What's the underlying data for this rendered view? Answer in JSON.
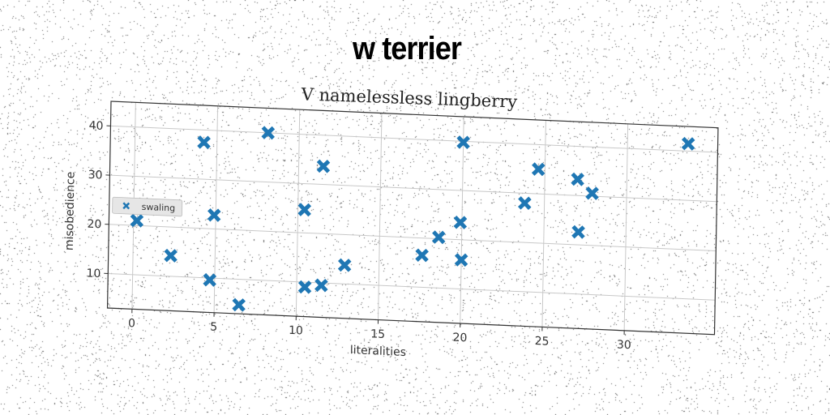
{
  "header": {
    "title": "w terrier"
  },
  "colors": {
    "series": "#1f77b4",
    "grid": "#c8c8c8",
    "axes": "#333333"
  },
  "chart_data": {
    "type": "scatter",
    "title": "V namelessless lingberry",
    "xlabel": "literalities",
    "ylabel": "misobedience",
    "xlim": [
      -1.5,
      35.5
    ],
    "ylim": [
      3,
      45
    ],
    "xticks": [
      0,
      5,
      10,
      15,
      20,
      25,
      30
    ],
    "yticks": [
      10,
      20,
      30,
      40
    ],
    "grid": true,
    "legend_position": "center-left",
    "marker": "x",
    "series": [
      {
        "name": "swaling",
        "points": [
          [
            0.2,
            21
          ],
          [
            2.3,
            14.2
          ],
          [
            4.2,
            37.5
          ],
          [
            4.7,
            9.6
          ],
          [
            4.9,
            22.8
          ],
          [
            6.5,
            4.8
          ],
          [
            8.1,
            40
          ],
          [
            10.4,
            24.7
          ],
          [
            10.5,
            9
          ],
          [
            11.5,
            33.7
          ],
          [
            11.5,
            9.5
          ],
          [
            12.9,
            13.8
          ],
          [
            17.6,
            16.5
          ],
          [
            18.6,
            20.3
          ],
          [
            19.9,
            23.5
          ],
          [
            20.0,
            39.8
          ],
          [
            20.0,
            15.9
          ],
          [
            23.8,
            28
          ],
          [
            24.6,
            35
          ],
          [
            27.0,
            33.3
          ],
          [
            27.1,
            22.6
          ],
          [
            27.9,
            30.6
          ],
          [
            33.7,
            41.5
          ]
        ]
      }
    ]
  }
}
